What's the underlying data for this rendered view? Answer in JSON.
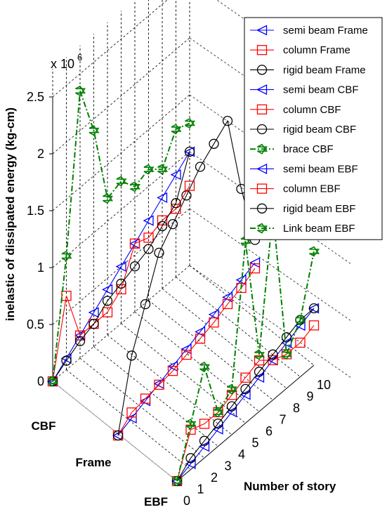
{
  "chart_data": {
    "type": "line",
    "subtype": "3d-line",
    "title": "",
    "zlabel": "inelastic of dissipated energy (kg-cm)",
    "zscale_label": "x 10",
    "zscale_exponent": "6",
    "xlabel": "Number of story",
    "z_ticks": [
      "0",
      "0.5",
      "1",
      "1.5",
      "2",
      "2.5"
    ],
    "x_ticks": [
      "0",
      "1",
      "2",
      "3",
      "4",
      "5",
      "6",
      "7",
      "8",
      "9",
      "10"
    ],
    "zlim": [
      0,
      2.5
    ],
    "xlim": [
      0,
      10
    ],
    "grid": true,
    "legend_position": "top-right",
    "systems": [
      "CBF",
      "Frame",
      "EBF"
    ],
    "x": [
      0,
      1,
      2,
      3,
      4,
      5,
      6,
      7,
      8,
      9,
      10
    ],
    "series": [
      {
        "name": "semi beam Frame",
        "system": "Frame",
        "color": "#0000ff",
        "marker": "triangle-left",
        "dash": "solid",
        "values": [
          0,
          0.05,
          0.1,
          0.15,
          0.2,
          0.25,
          0.3,
          0.35,
          0.4,
          0.45,
          0.5
        ]
      },
      {
        "name": "column Frame",
        "system": "Frame",
        "color": "#ff0000",
        "marker": "square",
        "dash": "solid",
        "values": [
          0,
          0.1,
          0.12,
          0.14,
          0.16,
          0.2,
          0.24,
          0.28,
          0.34,
          0.38,
          0.45
        ]
      },
      {
        "name": "rigid beam Frame",
        "system": "Frame",
        "color": "#000000",
        "marker": "circle",
        "dash": "solid",
        "values": [
          0,
          0.6,
          0.95,
          1.3,
          1.45,
          1.6,
          1.75,
          1.85,
          1.95,
          1.25,
          0.7
        ]
      },
      {
        "name": "semi beam CBF",
        "system": "CBF",
        "color": "#0000ff",
        "marker": "triangle-left",
        "dash": "solid",
        "values": [
          0,
          0.1,
          0.2,
          0.3,
          0.4,
          0.5,
          0.6,
          0.7,
          0.8,
          0.9,
          1.0
        ]
      },
      {
        "name": "column CBF",
        "system": "CBF",
        "color": "#ff0000",
        "marker": "square",
        "dash": "solid",
        "values": [
          0,
          0.65,
          0.2,
          0.2,
          0.2,
          0.3,
          0.6,
          0.55,
          0.6,
          0.6,
          0.7
        ]
      },
      {
        "name": "rigid beam CBF",
        "system": "CBF",
        "color": "#000000",
        "marker": "circle",
        "dash": "solid",
        "values": [
          0,
          0.08,
          0.15,
          0.2,
          0.3,
          0.35,
          0.4,
          0.45,
          0.55,
          0.65,
          1.0
        ]
      },
      {
        "name": "brace CBF",
        "system": "CBF",
        "color": "#008000",
        "marker": "star",
        "dash": "dashdot",
        "values": [
          0,
          1.0,
          2.35,
          1.9,
          1.2,
          1.25,
          1.1,
          1.15,
          1.05,
          1.3,
          1.25
        ]
      },
      {
        "name": "semi beam EBF",
        "system": "EBF",
        "color": "#0000ff",
        "marker": "triangle-left",
        "dash": "solid",
        "values": [
          0,
          0.05,
          0.1,
          0.15,
          0.2,
          0.25,
          0.3,
          0.35,
          0.4,
          0.45,
          0.5
        ]
      },
      {
        "name": "column EBF",
        "system": "EBF",
        "color": "#ff0000",
        "marker": "square",
        "dash": "solid",
        "values": [
          0,
          0.35,
          0.3,
          0.3,
          0.35,
          0.4,
          0.45,
          0.35,
          0.3,
          0.3,
          0.35
        ]
      },
      {
        "name": "rigid beam EBF",
        "system": "EBF",
        "color": "#000000",
        "marker": "circle",
        "dash": "solid",
        "values": [
          0,
          0.1,
          0.15,
          0.2,
          0.25,
          0.3,
          0.35,
          0.4,
          0.45,
          0.5,
          0.5
        ]
      },
      {
        "name": "Link beam EBF",
        "system": "EBF",
        "color": "#008000",
        "marker": "star",
        "dash": "dashdot",
        "values": [
          0,
          0.4,
          0.8,
          0.3,
          0.4,
          1.6,
          0.5,
          1.65,
          0.3,
          0.5,
          1.0
        ]
      }
    ]
  }
}
